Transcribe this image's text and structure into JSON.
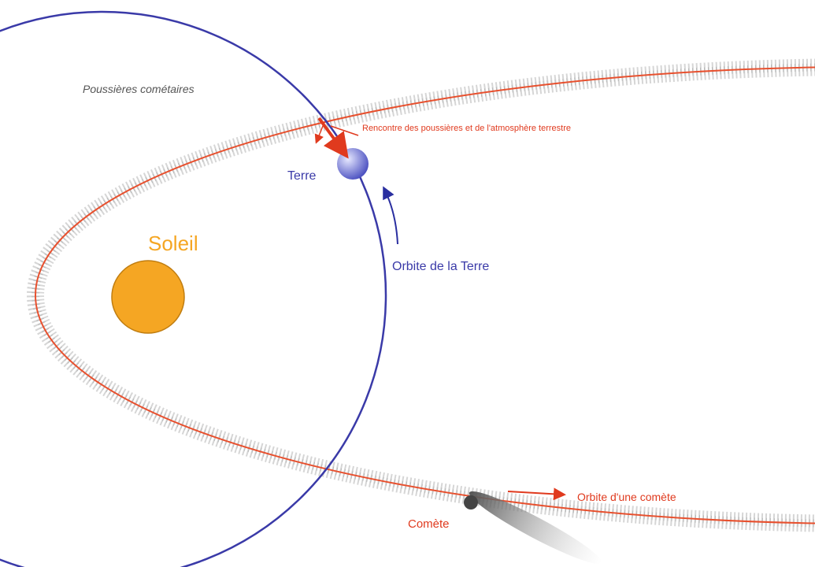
{
  "labels": {
    "dust": "Poussières cométaires",
    "encounter": "Rencontre des poussières et de l'atmosphère terrestre",
    "earth": "Terre",
    "sun": "Soleil",
    "earth_orbit": "Orbite de la Terre",
    "comet_orbit": "Orbite d'une comète",
    "comet": "Comète"
  }
}
